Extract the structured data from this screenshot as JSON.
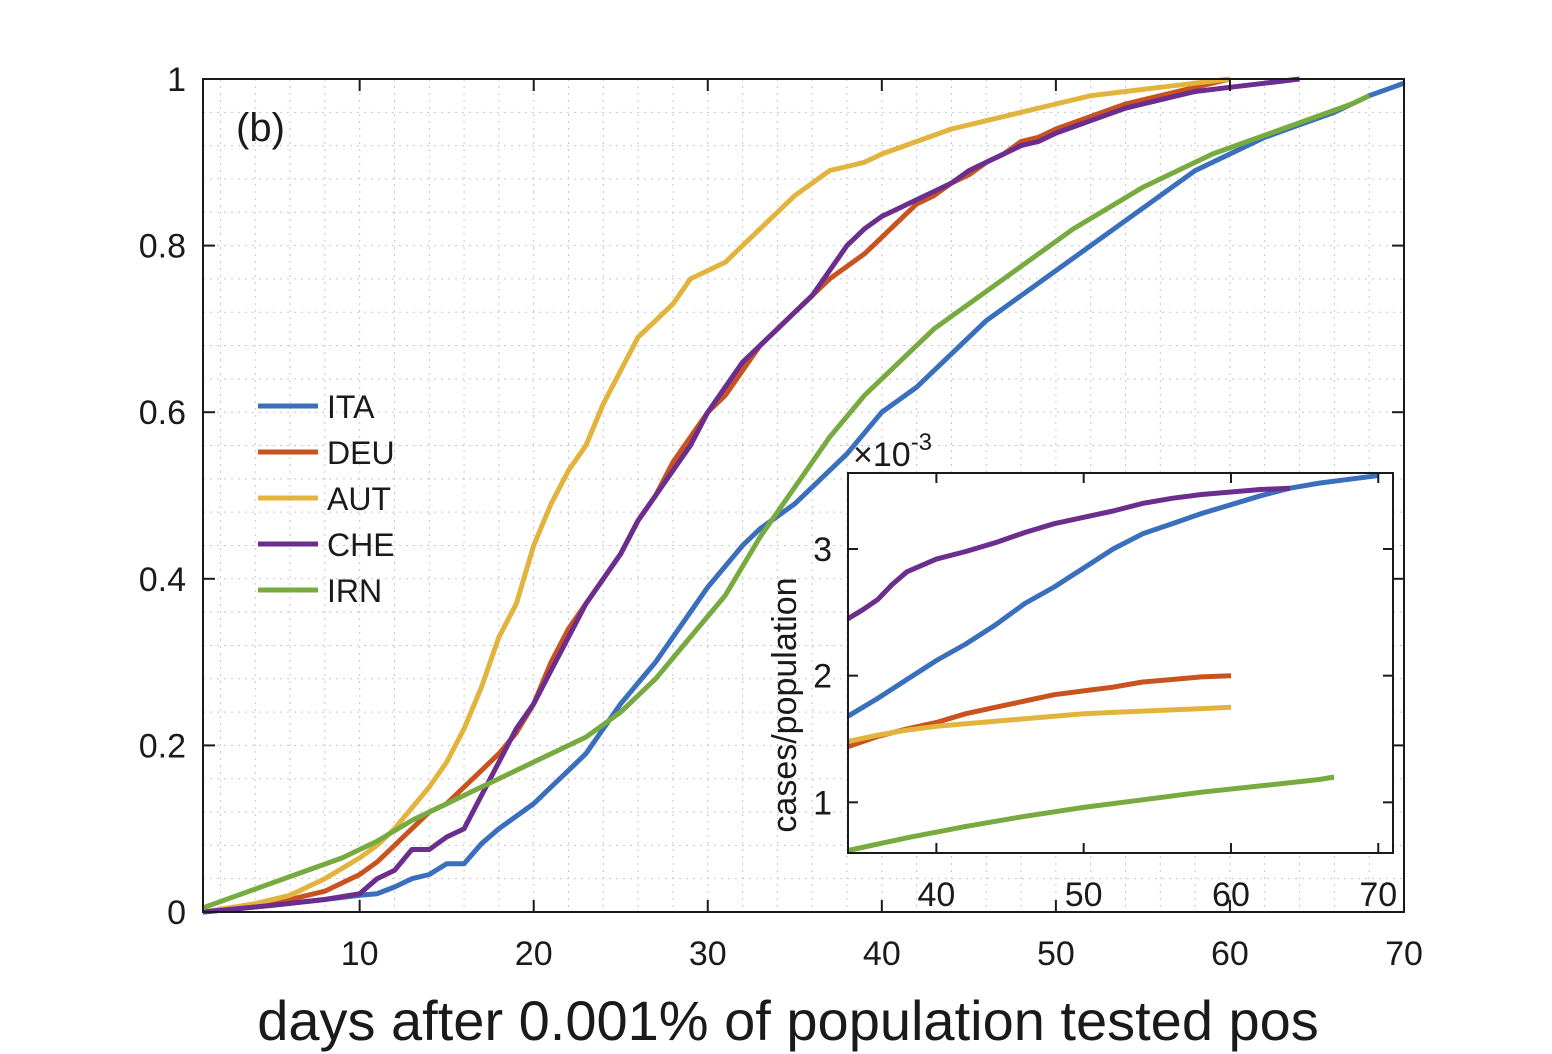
{
  "chart_data": [
    {
      "type": "line",
      "panel_label": "(b)",
      "xlabel": "days after 0.001% of population tested pos",
      "ylabel": "",
      "xlim": [
        1,
        70
      ],
      "ylim": [
        0,
        1
      ],
      "xticks": [
        10,
        20,
        30,
        40,
        50,
        60,
        70
      ],
      "yticks": [
        0,
        0.2,
        0.4,
        0.6,
        0.8,
        1
      ],
      "xtick_labels": [
        "10",
        "20",
        "30",
        "40",
        "50",
        "60",
        "70"
      ],
      "ytick_labels": [
        "0",
        "0.2",
        "0.4",
        "0.6",
        "0.8",
        "1"
      ],
      "grid": "dotted, major and minor",
      "legend_position": "middle-left",
      "series": [
        {
          "name": "ITA",
          "color": "#3a6fbd",
          "x": [
            1,
            5,
            8,
            10,
            11,
            12,
            13,
            14,
            15,
            16,
            17,
            18,
            19,
            20,
            21,
            22,
            23,
            24,
            25,
            26,
            27,
            28,
            29,
            30,
            32,
            33,
            35,
            36,
            38,
            40,
            42,
            44,
            46,
            48,
            50,
            52,
            54,
            56,
            58,
            60,
            62,
            64,
            66,
            68,
            70
          ],
          "y": [
            0,
            0.008,
            0.015,
            0.02,
            0.022,
            0.03,
            0.04,
            0.045,
            0.058,
            0.058,
            0.082,
            0.1,
            0.115,
            0.13,
            0.15,
            0.17,
            0.19,
            0.22,
            0.25,
            0.275,
            0.3,
            0.33,
            0.36,
            0.39,
            0.44,
            0.46,
            0.49,
            0.51,
            0.55,
            0.6,
            0.63,
            0.67,
            0.71,
            0.74,
            0.77,
            0.8,
            0.83,
            0.86,
            0.89,
            0.91,
            0.93,
            0.945,
            0.96,
            0.98,
            0.995
          ]
        },
        {
          "name": "DEU",
          "color": "#c9531f",
          "x": [
            1,
            5,
            8,
            10,
            11,
            12,
            13,
            14,
            15,
            16,
            17,
            18,
            19,
            20,
            21,
            22,
            23,
            24,
            25,
            26,
            27,
            28,
            29,
            30,
            31,
            32,
            33,
            34,
            35,
            36,
            37,
            38,
            39,
            40,
            41,
            42,
            43,
            44,
            45,
            46,
            47,
            48,
            49,
            50,
            52,
            54,
            56,
            58,
            60
          ],
          "y": [
            0,
            0.01,
            0.025,
            0.045,
            0.06,
            0.08,
            0.1,
            0.12,
            0.13,
            0.15,
            0.17,
            0.19,
            0.215,
            0.25,
            0.3,
            0.34,
            0.37,
            0.4,
            0.43,
            0.47,
            0.5,
            0.54,
            0.57,
            0.6,
            0.62,
            0.65,
            0.68,
            0.7,
            0.72,
            0.74,
            0.76,
            0.775,
            0.79,
            0.81,
            0.83,
            0.85,
            0.86,
            0.875,
            0.885,
            0.9,
            0.91,
            0.925,
            0.93,
            0.94,
            0.955,
            0.97,
            0.98,
            0.99,
            1.0
          ]
        },
        {
          "name": "AUT",
          "color": "#e2b43e",
          "x": [
            1,
            4,
            6,
            8,
            10,
            11,
            12,
            13,
            14,
            15,
            16,
            17,
            18,
            19,
            20,
            21,
            22,
            23,
            24,
            25,
            26,
            27,
            28,
            29,
            30,
            31,
            32,
            33,
            34,
            35,
            36,
            37,
            38,
            39,
            40,
            42,
            44,
            46,
            48,
            50,
            52,
            54,
            56,
            58,
            60
          ],
          "y": [
            0,
            0.01,
            0.02,
            0.04,
            0.065,
            0.08,
            0.1,
            0.125,
            0.15,
            0.18,
            0.22,
            0.27,
            0.33,
            0.37,
            0.44,
            0.49,
            0.53,
            0.56,
            0.61,
            0.65,
            0.69,
            0.71,
            0.73,
            0.76,
            0.77,
            0.78,
            0.8,
            0.82,
            0.84,
            0.86,
            0.875,
            0.89,
            0.895,
            0.9,
            0.91,
            0.925,
            0.94,
            0.95,
            0.96,
            0.97,
            0.98,
            0.985,
            0.99,
            0.995,
            1.0
          ]
        },
        {
          "name": "CHE",
          "color": "#6b2d8e",
          "x": [
            1,
            5,
            8,
            10,
            11,
            12,
            13,
            14,
            15,
            16,
            17,
            18,
            19,
            20,
            21,
            22,
            23,
            24,
            25,
            26,
            27,
            28,
            29,
            30,
            31,
            32,
            33,
            34,
            35,
            36,
            37,
            38,
            39,
            40,
            41,
            42,
            43,
            44,
            45,
            46,
            47,
            48,
            49,
            50,
            52,
            54,
            56,
            58,
            60,
            62,
            64
          ],
          "y": [
            0,
            0.008,
            0.015,
            0.022,
            0.04,
            0.05,
            0.075,
            0.075,
            0.09,
            0.1,
            0.14,
            0.18,
            0.22,
            0.25,
            0.29,
            0.33,
            0.37,
            0.4,
            0.43,
            0.47,
            0.5,
            0.53,
            0.56,
            0.6,
            0.63,
            0.66,
            0.68,
            0.7,
            0.72,
            0.74,
            0.77,
            0.8,
            0.82,
            0.835,
            0.845,
            0.855,
            0.865,
            0.875,
            0.89,
            0.9,
            0.91,
            0.92,
            0.925,
            0.935,
            0.95,
            0.965,
            0.975,
            0.985,
            0.99,
            0.995,
            1.0
          ]
        },
        {
          "name": "IRN",
          "color": "#77ab3f",
          "x": [
            1,
            3,
            5,
            7,
            9,
            11,
            13,
            15,
            17,
            19,
            21,
            23,
            25,
            27,
            29,
            31,
            33,
            35,
            37,
            39,
            41,
            43,
            45,
            47,
            49,
            51,
            53,
            55,
            57,
            59,
            61,
            63,
            65,
            67,
            68
          ],
          "y": [
            0.005,
            0.02,
            0.035,
            0.05,
            0.065,
            0.085,
            0.11,
            0.13,
            0.15,
            0.17,
            0.19,
            0.21,
            0.24,
            0.28,
            0.33,
            0.38,
            0.45,
            0.51,
            0.57,
            0.62,
            0.66,
            0.7,
            0.73,
            0.76,
            0.79,
            0.82,
            0.845,
            0.87,
            0.89,
            0.91,
            0.925,
            0.94,
            0.955,
            0.97,
            0.98
          ]
        }
      ]
    },
    {
      "type": "line",
      "scale_label": "×10",
      "scale_exponent": "-3",
      "ylabel": "cases/population",
      "xlim": [
        34,
        71
      ],
      "ylim": [
        0.6,
        3.6
      ],
      "xticks": [
        40,
        50,
        60,
        70
      ],
      "yticks": [
        1,
        2,
        3
      ],
      "xtick_labels": [
        "40",
        "50",
        "60",
        "70"
      ],
      "ytick_labels": [
        "1",
        "2",
        "3"
      ],
      "series": [
        {
          "name": "ITA",
          "color": "#3a6fbd",
          "x": [
            34,
            36,
            38,
            40,
            42,
            44,
            46,
            48,
            50,
            52,
            54,
            56,
            58,
            60,
            62,
            64,
            66,
            68,
            70
          ],
          "y": [
            1.68,
            1.82,
            1.97,
            2.12,
            2.25,
            2.4,
            2.57,
            2.7,
            2.85,
            3.0,
            3.12,
            3.2,
            3.28,
            3.35,
            3.42,
            3.48,
            3.52,
            3.55,
            3.58
          ]
        },
        {
          "name": "DEU",
          "color": "#c9531f",
          "x": [
            34,
            36,
            38,
            40,
            42,
            44,
            46,
            48,
            50,
            52,
            54,
            56,
            58,
            60
          ],
          "y": [
            1.44,
            1.52,
            1.58,
            1.63,
            1.7,
            1.75,
            1.8,
            1.85,
            1.88,
            1.91,
            1.95,
            1.97,
            1.99,
            2.0
          ]
        },
        {
          "name": "AUT",
          "color": "#e2b43e",
          "x": [
            34,
            36,
            38,
            40,
            42,
            44,
            46,
            48,
            50,
            52,
            54,
            56,
            58,
            60
          ],
          "y": [
            1.48,
            1.53,
            1.57,
            1.6,
            1.62,
            1.64,
            1.66,
            1.68,
            1.7,
            1.71,
            1.72,
            1.73,
            1.74,
            1.75
          ]
        },
        {
          "name": "CHE",
          "color": "#6b2d8e",
          "x": [
            34,
            35,
            36,
            37,
            38,
            40,
            42,
            44,
            46,
            48,
            50,
            52,
            54,
            56,
            58,
            60,
            62,
            64
          ],
          "y": [
            2.45,
            2.52,
            2.6,
            2.72,
            2.82,
            2.92,
            2.98,
            3.05,
            3.13,
            3.2,
            3.25,
            3.3,
            3.36,
            3.4,
            3.43,
            3.45,
            3.47,
            3.48
          ]
        },
        {
          "name": "IRN",
          "color": "#77ab3f",
          "x": [
            34,
            38,
            42,
            46,
            50,
            54,
            58,
            62,
            66,
            67
          ],
          "y": [
            0.62,
            0.72,
            0.81,
            0.89,
            0.96,
            1.02,
            1.08,
            1.13,
            1.18,
            1.2
          ]
        }
      ]
    }
  ]
}
